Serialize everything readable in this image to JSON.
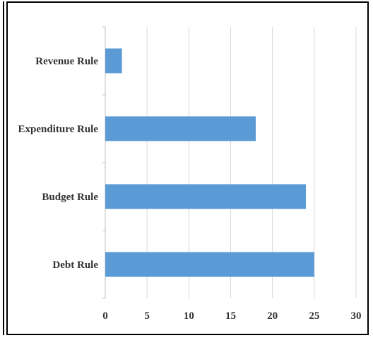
{
  "chart_data": {
    "type": "bar",
    "orientation": "horizontal",
    "categories": [
      "Revenue Rule",
      "Expenditure Rule",
      "Budget Rule",
      "Debt Rule"
    ],
    "values": [
      2,
      18,
      24,
      25
    ],
    "xlim": [
      0,
      30
    ],
    "xticks": [
      0,
      5,
      10,
      15,
      20,
      25,
      30
    ],
    "grid": true,
    "title": "",
    "xlabel": "",
    "ylabel": "",
    "bar_color": "#5b9bd5"
  }
}
